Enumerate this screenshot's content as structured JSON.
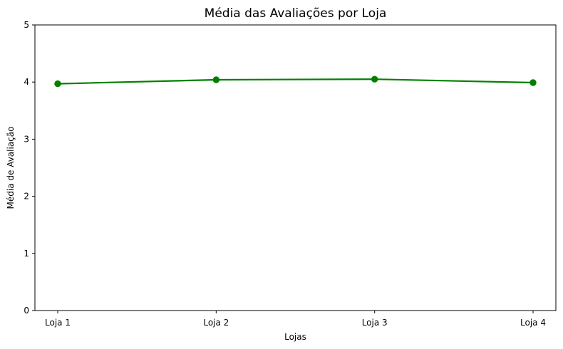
{
  "chart_data": {
    "type": "line",
    "title": "Média das Avaliações por Loja",
    "xlabel": "Lojas",
    "ylabel": "Média de Avaliação",
    "categories": [
      "Loja 1",
      "Loja 2",
      "Loja 3",
      "Loja 4"
    ],
    "series": [
      {
        "values": [
          3.97,
          4.04,
          4.05,
          3.99
        ],
        "color": "#008000",
        "marker": "circle"
      }
    ],
    "ylim": [
      0,
      5
    ],
    "yticks": [
      0,
      1,
      2,
      3,
      4,
      5
    ],
    "grid": false,
    "legend": "none"
  }
}
